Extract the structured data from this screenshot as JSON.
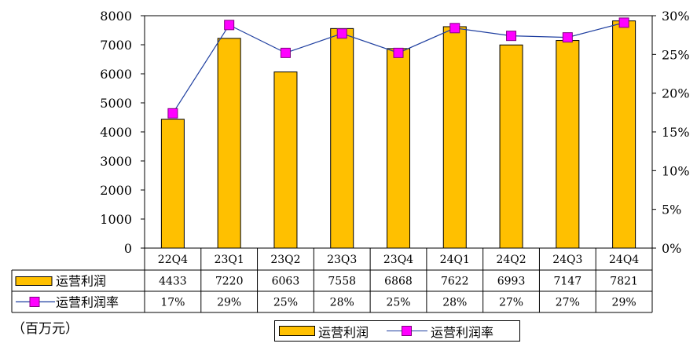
{
  "chart_data": {
    "type": "bar",
    "categories": [
      "22Q4",
      "23Q1",
      "23Q2",
      "23Q3",
      "23Q4",
      "24Q1",
      "24Q2",
      "24Q3",
      "24Q4"
    ],
    "series": [
      {
        "name": "运营利润",
        "type": "bar",
        "axis": "left",
        "values": [
          4433,
          7220,
          6063,
          7558,
          6868,
          7622,
          6993,
          7147,
          7821
        ],
        "color": "#FFC000"
      },
      {
        "name": "运营利润率",
        "type": "line",
        "axis": "right",
        "values": [
          17.4,
          28.8,
          25.2,
          27.7,
          25.2,
          28.4,
          27.4,
          27.2,
          29.1
        ],
        "color": "#1F3FA0",
        "marker_color": "#FF00FF"
      }
    ],
    "table_rows": [
      {
        "label": "运营利润",
        "cells": [
          "4433",
          "7220",
          "6063",
          "7558",
          "6868",
          "7622",
          "6993",
          "7147",
          "7821"
        ]
      },
      {
        "label": "运营利润率",
        "cells": [
          "17%",
          "29%",
          "25%",
          "28%",
          "25%",
          "28%",
          "27%",
          "27%",
          "29%"
        ]
      }
    ],
    "yaxis_left": {
      "ticks": [
        "0",
        "1000",
        "2000",
        "3000",
        "4000",
        "5000",
        "6000",
        "7000",
        "8000"
      ],
      "ylim": [
        0,
        8000
      ]
    },
    "yaxis_right": {
      "ticks": [
        "0%",
        "5%",
        "10%",
        "15%",
        "20%",
        "25%",
        "30%"
      ],
      "ylim": [
        0,
        30
      ]
    },
    "unit_label": "（百万元）",
    "legend": {
      "bar_label": "运营利润",
      "line_label": "运营利润率",
      "position": "bottom"
    },
    "grid": false
  }
}
